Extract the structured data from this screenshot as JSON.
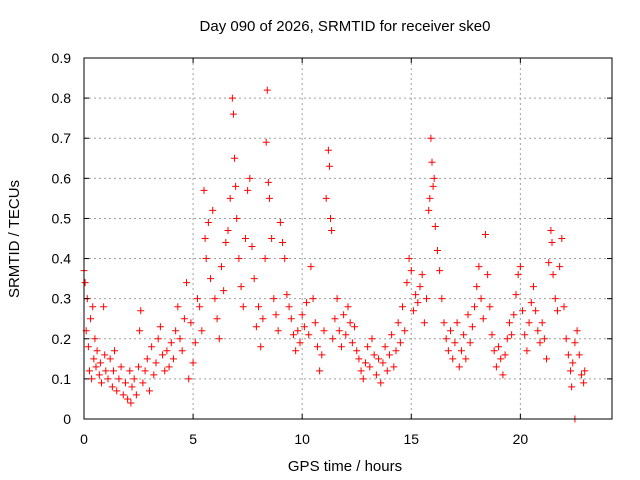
{
  "chart_data": {
    "type": "scatter",
    "title": "Day 090 of 2026, SRMTID for receiver ske0",
    "xlabel": "GPS time / hours",
    "ylabel": "SRMTID / TECUs",
    "xlim": [
      0,
      24.2
    ],
    "ylim": [
      0,
      0.9
    ],
    "xticks": [
      0,
      5,
      10,
      15,
      20
    ],
    "xtick_labels": [
      "0",
      "5",
      "10",
      "15",
      "20"
    ],
    "yticks": [
      0,
      0.1,
      0.2,
      0.3,
      0.4,
      0.5,
      0.6,
      0.7,
      0.8,
      0.9
    ],
    "ytick_labels": [
      "0",
      "0.1",
      "0.2",
      "0.3",
      "0.4",
      "0.5",
      "0.6",
      "0.7",
      "0.8",
      "0.9"
    ],
    "grid": true,
    "marker": "+",
    "series_color": "#ff0000",
    "series": [
      {
        "name": "SRMTID",
        "points": [
          [
            0.0,
            0.37
          ],
          [
            0.05,
            0.34
          ],
          [
            0.1,
            0.22
          ],
          [
            0.15,
            0.3
          ],
          [
            0.2,
            0.18
          ],
          [
            0.25,
            0.12
          ],
          [
            0.3,
            0.25
          ],
          [
            0.35,
            0.1
          ],
          [
            0.4,
            0.28
          ],
          [
            0.45,
            0.15
          ],
          [
            0.5,
            0.2
          ],
          [
            0.55,
            0.13
          ],
          [
            0.6,
            0.17
          ],
          [
            0.7,
            0.11
          ],
          [
            0.75,
            0.14
          ],
          [
            0.8,
            0.09
          ],
          [
            0.9,
            0.28
          ],
          [
            0.95,
            0.16
          ],
          [
            1.0,
            0.12
          ],
          [
            1.1,
            0.1
          ],
          [
            1.2,
            0.15
          ],
          [
            1.3,
            0.08
          ],
          [
            1.35,
            0.12
          ],
          [
            1.4,
            0.17
          ],
          [
            1.5,
            0.07
          ],
          [
            1.6,
            0.1
          ],
          [
            1.7,
            0.13
          ],
          [
            1.8,
            0.06
          ],
          [
            1.9,
            0.09
          ],
          [
            2.0,
            0.05
          ],
          [
            2.1,
            0.12
          ],
          [
            2.15,
            0.04
          ],
          [
            2.2,
            0.08
          ],
          [
            2.3,
            0.1
          ],
          [
            2.4,
            0.06
          ],
          [
            2.5,
            0.13
          ],
          [
            2.55,
            0.22
          ],
          [
            2.6,
            0.27
          ],
          [
            2.7,
            0.09
          ],
          [
            2.8,
            0.12
          ],
          [
            2.9,
            0.15
          ],
          [
            3.0,
            0.07
          ],
          [
            3.1,
            0.18
          ],
          [
            3.2,
            0.11
          ],
          [
            3.3,
            0.14
          ],
          [
            3.4,
            0.2
          ],
          [
            3.5,
            0.23
          ],
          [
            3.6,
            0.16
          ],
          [
            3.7,
            0.12
          ],
          [
            3.8,
            0.17
          ],
          [
            3.9,
            0.13
          ],
          [
            4.0,
            0.19
          ],
          [
            4.1,
            0.15
          ],
          [
            4.2,
            0.22
          ],
          [
            4.3,
            0.28
          ],
          [
            4.4,
            0.2
          ],
          [
            4.5,
            0.17
          ],
          [
            4.6,
            0.25
          ],
          [
            4.7,
            0.34
          ],
          [
            4.8,
            0.1
          ],
          [
            4.9,
            0.24
          ],
          [
            5.0,
            0.14
          ],
          [
            5.1,
            0.19
          ],
          [
            5.2,
            0.3
          ],
          [
            5.3,
            0.28
          ],
          [
            5.4,
            0.22
          ],
          [
            5.5,
            0.57
          ],
          [
            5.55,
            0.45
          ],
          [
            5.6,
            0.4
          ],
          [
            5.7,
            0.49
          ],
          [
            5.8,
            0.35
          ],
          [
            5.9,
            0.52
          ],
          [
            6.0,
            0.3
          ],
          [
            6.1,
            0.25
          ],
          [
            6.2,
            0.2
          ],
          [
            6.3,
            0.38
          ],
          [
            6.4,
            0.32
          ],
          [
            6.5,
            0.44
          ],
          [
            6.6,
            0.47
          ],
          [
            6.7,
            0.55
          ],
          [
            6.8,
            0.8
          ],
          [
            6.85,
            0.76
          ],
          [
            6.9,
            0.65
          ],
          [
            6.95,
            0.58
          ],
          [
            7.0,
            0.5
          ],
          [
            7.1,
            0.4
          ],
          [
            7.2,
            0.33
          ],
          [
            7.3,
            0.28
          ],
          [
            7.4,
            0.45
          ],
          [
            7.5,
            0.57
          ],
          [
            7.6,
            0.6
          ],
          [
            7.7,
            0.43
          ],
          [
            7.8,
            0.35
          ],
          [
            7.9,
            0.23
          ],
          [
            8.0,
            0.28
          ],
          [
            8.1,
            0.18
          ],
          [
            8.2,
            0.25
          ],
          [
            8.3,
            0.4
          ],
          [
            8.35,
            0.69
          ],
          [
            8.4,
            0.82
          ],
          [
            8.45,
            0.59
          ],
          [
            8.5,
            0.55
          ],
          [
            8.6,
            0.45
          ],
          [
            8.7,
            0.3
          ],
          [
            8.8,
            0.26
          ],
          [
            8.9,
            0.22
          ],
          [
            9.0,
            0.49
          ],
          [
            9.1,
            0.44
          ],
          [
            9.2,
            0.4
          ],
          [
            9.3,
            0.31
          ],
          [
            9.4,
            0.28
          ],
          [
            9.5,
            0.25
          ],
          [
            9.6,
            0.21
          ],
          [
            9.7,
            0.17
          ],
          [
            9.8,
            0.22
          ],
          [
            9.9,
            0.19
          ],
          [
            10.0,
            0.26
          ],
          [
            10.1,
            0.23
          ],
          [
            10.2,
            0.29
          ],
          [
            10.3,
            0.21
          ],
          [
            10.4,
            0.38
          ],
          [
            10.5,
            0.3
          ],
          [
            10.6,
            0.24
          ],
          [
            10.7,
            0.18
          ],
          [
            10.8,
            0.12
          ],
          [
            10.9,
            0.16
          ],
          [
            11.0,
            0.22
          ],
          [
            11.1,
            0.55
          ],
          [
            11.2,
            0.67
          ],
          [
            11.25,
            0.63
          ],
          [
            11.3,
            0.5
          ],
          [
            11.35,
            0.47
          ],
          [
            11.4,
            0.2
          ],
          [
            11.5,
            0.25
          ],
          [
            11.6,
            0.3
          ],
          [
            11.7,
            0.22
          ],
          [
            11.8,
            0.18
          ],
          [
            11.9,
            0.26
          ],
          [
            12.0,
            0.21
          ],
          [
            12.1,
            0.28
          ],
          [
            12.2,
            0.24
          ],
          [
            12.3,
            0.19
          ],
          [
            12.4,
            0.23
          ],
          [
            12.5,
            0.17
          ],
          [
            12.6,
            0.15
          ],
          [
            12.7,
            0.12
          ],
          [
            12.8,
            0.1
          ],
          [
            12.9,
            0.14
          ],
          [
            13.0,
            0.18
          ],
          [
            13.1,
            0.13
          ],
          [
            13.2,
            0.2
          ],
          [
            13.3,
            0.16
          ],
          [
            13.4,
            0.11
          ],
          [
            13.5,
            0.15
          ],
          [
            13.6,
            0.09
          ],
          [
            13.7,
            0.14
          ],
          [
            13.8,
            0.18
          ],
          [
            13.9,
            0.12
          ],
          [
            14.0,
            0.16
          ],
          [
            14.1,
            0.21
          ],
          [
            14.2,
            0.13
          ],
          [
            14.3,
            0.17
          ],
          [
            14.4,
            0.24
          ],
          [
            14.5,
            0.19
          ],
          [
            14.6,
            0.28
          ],
          [
            14.7,
            0.22
          ],
          [
            14.8,
            0.34
          ],
          [
            14.9,
            0.4
          ],
          [
            15.0,
            0.37
          ],
          [
            15.1,
            0.27
          ],
          [
            15.2,
            0.31
          ],
          [
            15.3,
            0.29
          ],
          [
            15.4,
            0.33
          ],
          [
            15.5,
            0.36
          ],
          [
            15.6,
            0.24
          ],
          [
            15.7,
            0.3
          ],
          [
            15.8,
            0.52
          ],
          [
            15.85,
            0.55
          ],
          [
            15.9,
            0.7
          ],
          [
            15.95,
            0.64
          ],
          [
            16.0,
            0.58
          ],
          [
            16.05,
            0.6
          ],
          [
            16.1,
            0.48
          ],
          [
            16.2,
            0.42
          ],
          [
            16.3,
            0.37
          ],
          [
            16.4,
            0.3
          ],
          [
            16.5,
            0.24
          ],
          [
            16.6,
            0.2
          ],
          [
            16.7,
            0.17
          ],
          [
            16.8,
            0.22
          ],
          [
            16.9,
            0.15
          ],
          [
            17.0,
            0.19
          ],
          [
            17.1,
            0.24
          ],
          [
            17.2,
            0.13
          ],
          [
            17.3,
            0.17
          ],
          [
            17.4,
            0.21
          ],
          [
            17.5,
            0.15
          ],
          [
            17.6,
            0.26
          ],
          [
            17.7,
            0.19
          ],
          [
            17.8,
            0.23
          ],
          [
            17.9,
            0.28
          ],
          [
            18.0,
            0.33
          ],
          [
            18.1,
            0.38
          ],
          [
            18.2,
            0.3
          ],
          [
            18.3,
            0.25
          ],
          [
            18.4,
            0.46
          ],
          [
            18.5,
            0.36
          ],
          [
            18.6,
            0.28
          ],
          [
            18.7,
            0.21
          ],
          [
            18.8,
            0.17
          ],
          [
            18.9,
            0.13
          ],
          [
            19.0,
            0.18
          ],
          [
            19.1,
            0.15
          ],
          [
            19.2,
            0.11
          ],
          [
            19.3,
            0.16
          ],
          [
            19.4,
            0.2
          ],
          [
            19.5,
            0.24
          ],
          [
            19.6,
            0.21
          ],
          [
            19.7,
            0.26
          ],
          [
            19.8,
            0.31
          ],
          [
            19.9,
            0.36
          ],
          [
            20.0,
            0.38
          ],
          [
            20.1,
            0.27
          ],
          [
            20.2,
            0.21
          ],
          [
            20.3,
            0.17
          ],
          [
            20.4,
            0.24
          ],
          [
            20.5,
            0.29
          ],
          [
            20.6,
            0.33
          ],
          [
            20.7,
            0.27
          ],
          [
            20.8,
            0.22
          ],
          [
            20.9,
            0.19
          ],
          [
            21.0,
            0.24
          ],
          [
            21.1,
            0.2
          ],
          [
            21.2,
            0.15
          ],
          [
            21.3,
            0.39
          ],
          [
            21.4,
            0.47
          ],
          [
            21.45,
            0.44
          ],
          [
            21.5,
            0.36
          ],
          [
            21.6,
            0.3
          ],
          [
            21.7,
            0.27
          ],
          [
            21.8,
            0.38
          ],
          [
            21.9,
            0.45
          ],
          [
            22.0,
            0.28
          ],
          [
            22.1,
            0.2
          ],
          [
            22.2,
            0.16
          ],
          [
            22.3,
            0.12
          ],
          [
            22.35,
            0.08
          ],
          [
            22.4,
            0.14
          ],
          [
            22.5,
            0.19
          ],
          [
            22.6,
            0.22
          ],
          [
            22.7,
            0.16
          ],
          [
            22.8,
            0.11
          ],
          [
            22.9,
            0.09
          ],
          [
            22.95,
            0.12
          ],
          [
            22.5,
            0.0
          ]
        ]
      }
    ]
  }
}
